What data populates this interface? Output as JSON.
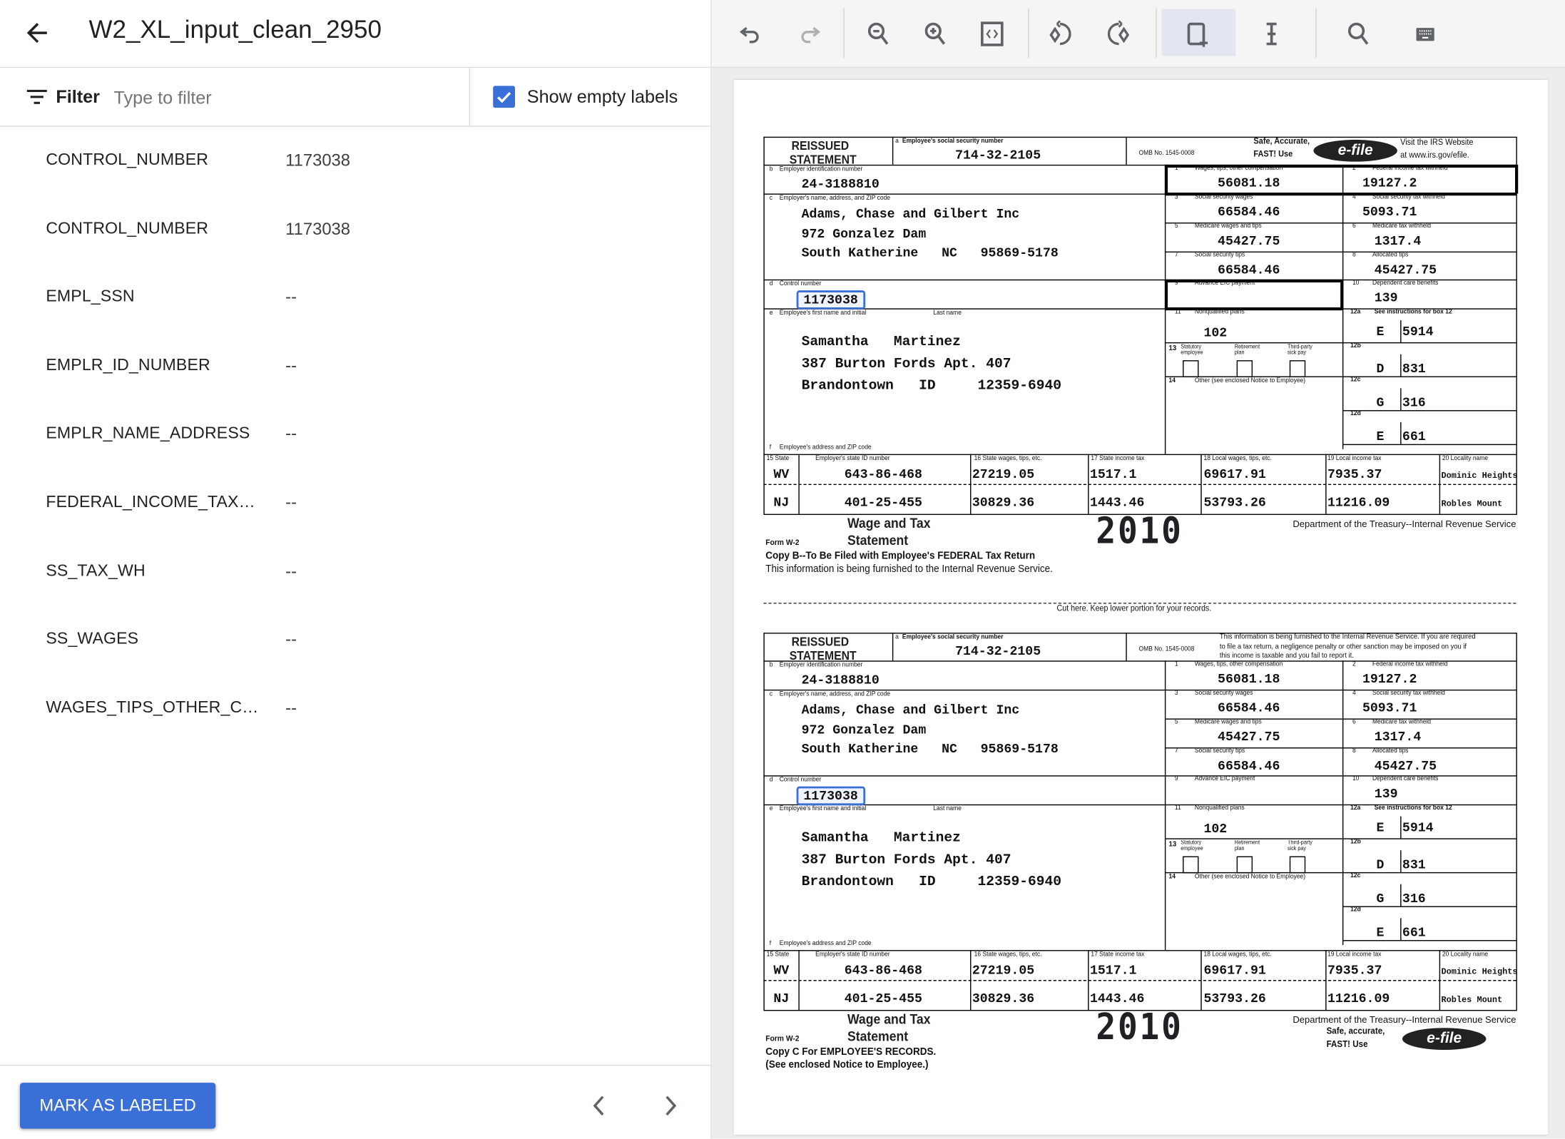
{
  "header": {
    "title": "W2_XL_input_clean_2950",
    "back_icon": "arrow-left-icon"
  },
  "filter": {
    "label": "Filter",
    "placeholder": "Type to filter",
    "show_empty_label": "Show empty labels",
    "show_empty_checked": true
  },
  "labels": [
    {
      "name": "CONTROL_NUMBER",
      "value": "1173038"
    },
    {
      "name": "CONTROL_NUMBER",
      "value": "1173038"
    },
    {
      "name": "EMPL_SSN",
      "value": "--"
    },
    {
      "name": "EMPLR_ID_NUMBER",
      "value": "--"
    },
    {
      "name": "EMPLR_NAME_ADDRESS",
      "value": "--"
    },
    {
      "name": "FEDERAL_INCOME_TAX_...",
      "value": "--"
    },
    {
      "name": "SS_TAX_WH",
      "value": "--"
    },
    {
      "name": "SS_WAGES",
      "value": "--"
    },
    {
      "name": "WAGES_TIPS_OTHER_CO...",
      "value": "--"
    }
  ],
  "footer": {
    "mark_label": "MARK AS LABELED"
  },
  "toolbar": [
    "undo-icon",
    "redo-icon",
    "zoom-out-icon",
    "zoom-in-icon",
    "fit-page-icon",
    "rotate-left-icon",
    "rotate-right-icon",
    "draw-box-icon",
    "text-cursor-icon",
    "search-icon",
    "keyboard-icon"
  ],
  "colors": {
    "accent": "#3a6fd8",
    "highlight": "#3b6fd8"
  },
  "w2": {
    "reissued": "REISSUED",
    "statement": "STATEMENT",
    "a_label": "Employee's social security number",
    "ssn": "714-32-2105",
    "omb": "OMB No. 1545-0008",
    "safe1": "Safe, Accurate,",
    "safe2": "FAST! Use",
    "efile": "e-file",
    "visit1": "Visit the IRS Website",
    "visit2": "at www.irs.gov/efile.",
    "b_label": "Employer identification number",
    "ein": "24-3188810",
    "c_label": "Employer's name, address, and ZIP code",
    "employer": [
      "Adams, Chase and Gilbert Inc",
      "972 Gonzalez Dam",
      "South Katherine   NC   95869-5178"
    ],
    "d_label": "Control number",
    "control": "1173038",
    "e_label": "Employee's first name and initial",
    "last_name_label": "Last name",
    "employee": [
      "Samantha   Martinez",
      "387 Burton Fords Apt. 407",
      "Brandontown   ID     12359-6940"
    ],
    "f_label": "Employee's address and ZIP code",
    "boxes": [
      {
        "n": "1",
        "label": "Wages, tips, other compensation",
        "value": "56081.18"
      },
      {
        "n": "2",
        "label": "Federal income tax withheld",
        "value": "19127.2"
      },
      {
        "n": "3",
        "label": "Social security wages",
        "value": "66584.46"
      },
      {
        "n": "4",
        "label": "Social security tax withheld",
        "value": "5093.71"
      },
      {
        "n": "5",
        "label": "Medicare wages and tips",
        "value": "45427.75"
      },
      {
        "n": "6",
        "label": "Medicare tax withheld",
        "value": "1317.4"
      },
      {
        "n": "7",
        "label": "Social security tips",
        "value": "66584.46"
      },
      {
        "n": "8",
        "label": "Allocated tips",
        "value": "45427.75"
      },
      {
        "n": "9",
        "label": "Advance EIC payment",
        "value": ""
      },
      {
        "n": "10",
        "label": "Dependent care benefits",
        "value": "139"
      },
      {
        "n": "11",
        "label": "Nonqualified plans",
        "value": "102"
      }
    ],
    "box12_label": "See instructions for box 12",
    "box12": [
      {
        "n": "12a",
        "code": "E",
        "value": "5914"
      },
      {
        "n": "12b",
        "code": "D",
        "value": "831"
      },
      {
        "n": "12c",
        "code": "G",
        "value": "316"
      },
      {
        "n": "12d",
        "code": "E",
        "value": "661"
      }
    ],
    "box13": {
      "n": "13",
      "items": [
        "Statutory employee",
        "Retirement plan",
        "Third-party sick pay"
      ]
    },
    "box14": {
      "n": "14",
      "label": "Other (see enclosed Notice to Employee)"
    },
    "state_headers": [
      "15 State",
      "Employer's state ID number",
      "16 State wages, tips, etc.",
      "17 State income tax",
      "18 Local wages, tips, etc.",
      "19 Local income tax",
      "20 Locality name"
    ],
    "state_rows": [
      [
        "WV",
        "643-86-468",
        "27219.05",
        "1517.1",
        "69617.91",
        "7935.37",
        "Dominic Heights"
      ],
      [
        "NJ",
        "401-25-455",
        "30829.36",
        "1443.46",
        "53793.26",
        "11216.09",
        "Robles Mount"
      ]
    ],
    "wage_tax1": "Wage and Tax",
    "wage_tax2": "Statement",
    "form_w2": "Form  W-2",
    "year": "2010",
    "dept": "Department of the Treasury--Internal Revenue Service"
  },
  "copies": [
    {
      "copy_line1": "Copy B--To Be Filed with Employee's FEDERAL Tax Return",
      "copy_line2": "This information is being furnished to the Internal Revenue Service."
    },
    {
      "notice": [
        "This information is being furnished to the Internal Revenue Service.  If you are required",
        "to file a tax return, a negligence penalty or other sanction may be imposed on you if",
        "this income is taxable and you fail to report it."
      ],
      "copy_line1": "Copy C For EMPLOYEE'S RECORDS.",
      "copy_line2": "(See enclosed Notice to Employee.)",
      "safe1": "Safe, accurate,",
      "safe2": "FAST!  Use"
    }
  ],
  "cut_text": "Cut here.  Keep lower portion for your records."
}
